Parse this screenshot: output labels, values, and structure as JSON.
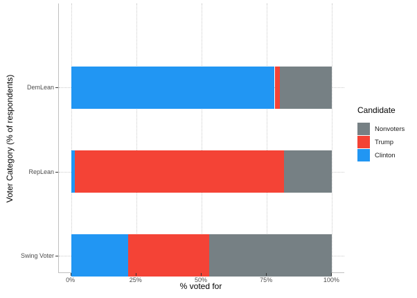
{
  "chart_data": {
    "type": "bar",
    "orientation": "horizontal",
    "stacked": true,
    "xlabel": "% voted for",
    "ylabel": "Voter Category (% of respondents)",
    "categories": [
      "Swing Voter",
      "RepLean",
      "DemLean"
    ],
    "series": [
      {
        "name": "Clinton",
        "color": "#2196f3",
        "values": [
          22,
          1.5,
          78
        ]
      },
      {
        "name": "Trump",
        "color": "#f44336",
        "values": [
          31,
          80,
          2
        ]
      },
      {
        "name": "Nonvoters",
        "color": "#768084",
        "values": [
          47,
          18.5,
          20
        ]
      }
    ],
    "xlim": [
      0,
      100
    ],
    "x_ticks": [
      {
        "value": 0,
        "label": "0%"
      },
      {
        "value": 25,
        "label": "25%"
      },
      {
        "value": 50,
        "label": "50%"
      },
      {
        "value": 75,
        "label": "75%"
      },
      {
        "value": 100,
        "label": "100%"
      }
    ],
    "grid": "dotted",
    "legend": {
      "title": "Candidate",
      "position": "right",
      "items": [
        "Nonvoters",
        "Trump",
        "Clinton"
      ]
    }
  }
}
